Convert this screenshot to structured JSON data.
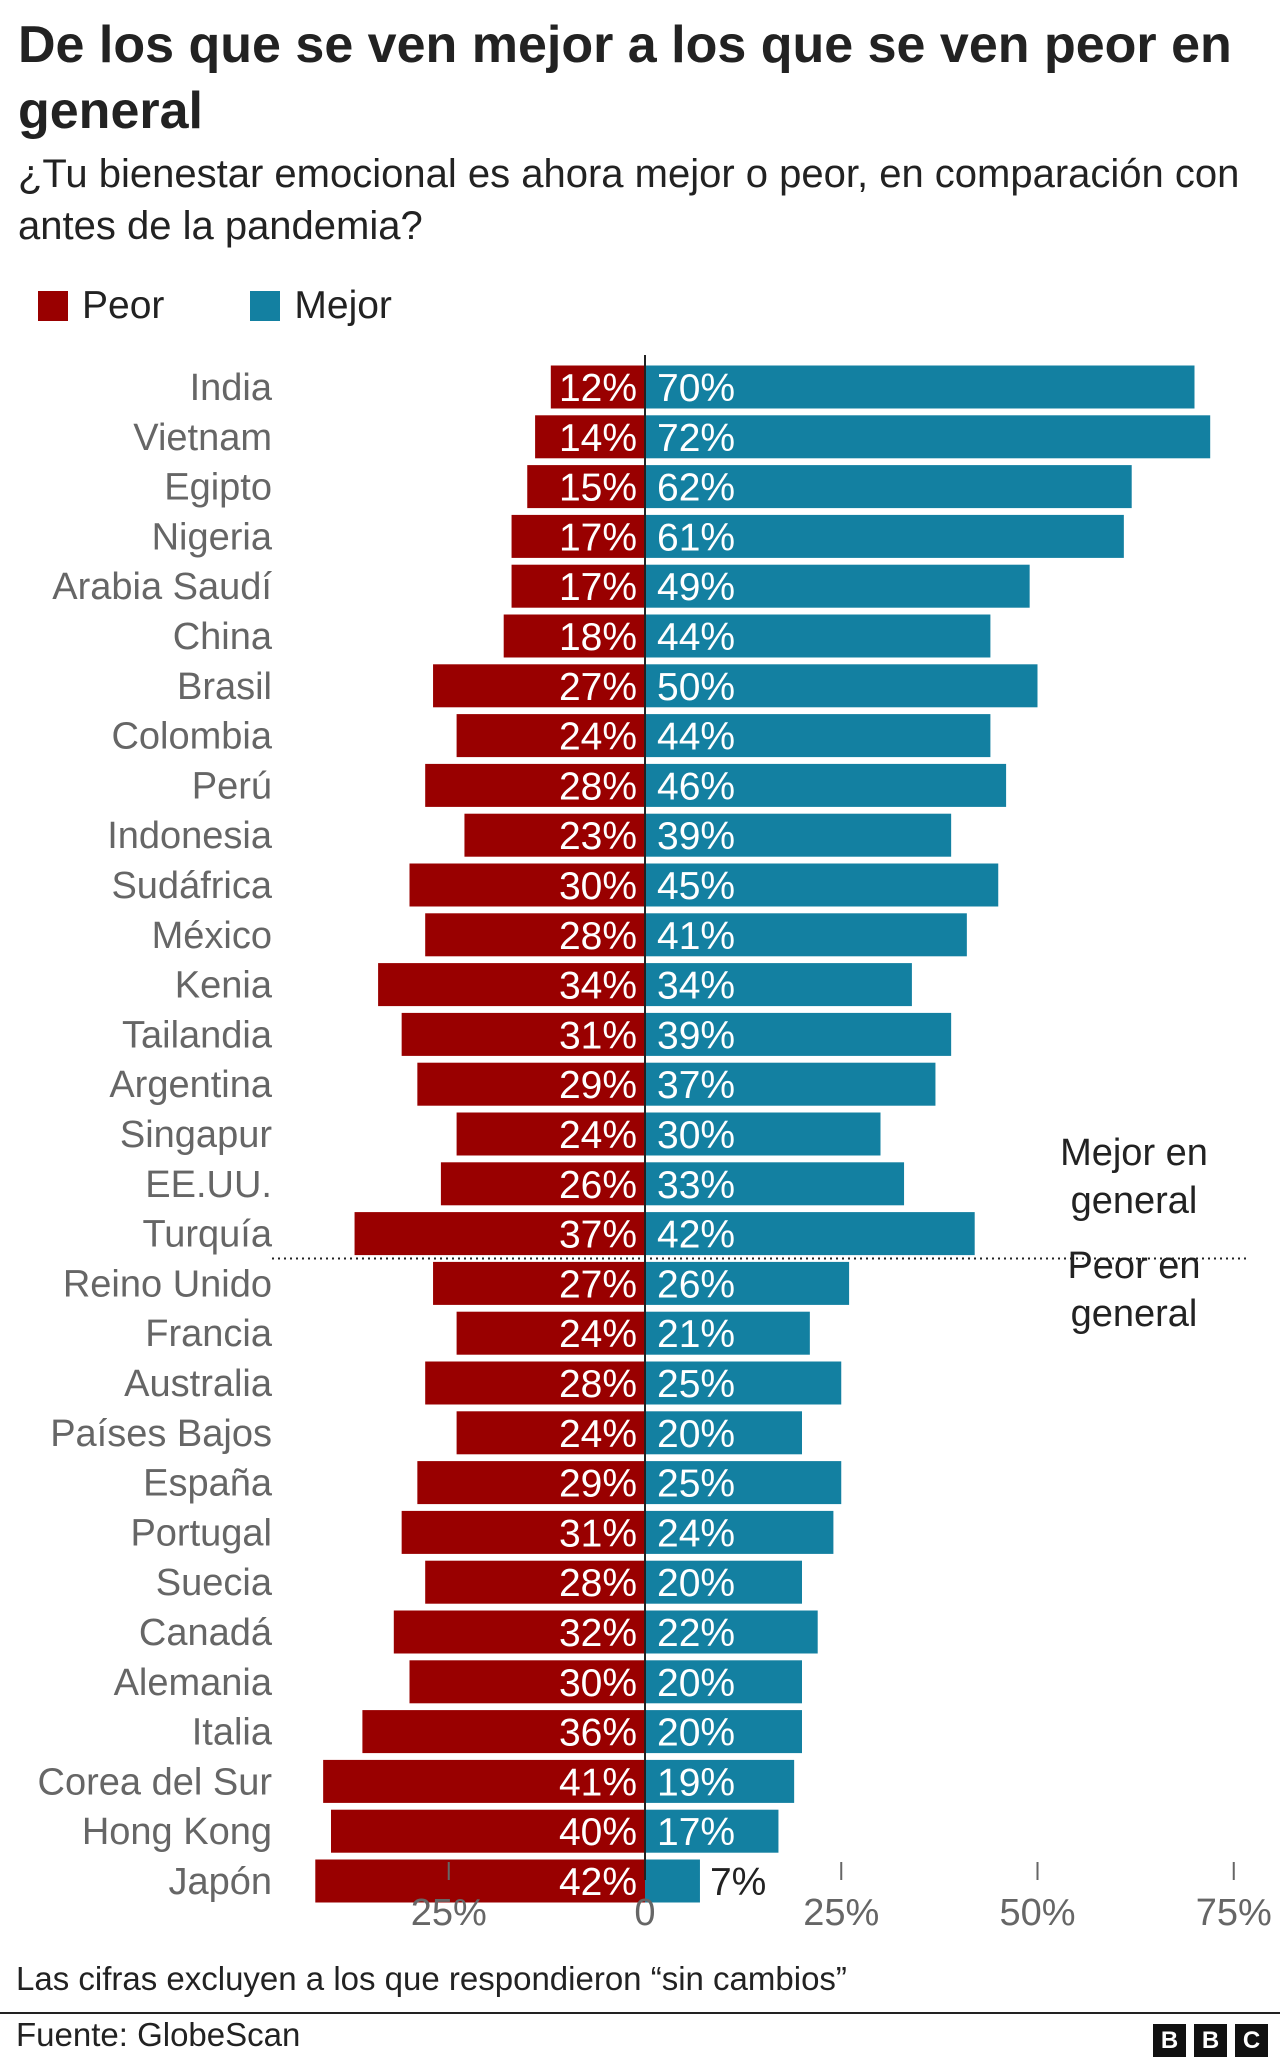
{
  "chart_data": {
    "type": "bar",
    "orientation": "horizontal-diverging",
    "title": "De los que se ven mejor a los que se ven peor en general",
    "subtitle": "¿Tu bienestar emocional es ahora mejor o peor, en comparación con antes de la pandemia?",
    "legend": [
      {
        "label": "Peor",
        "color": "#990000"
      },
      {
        "label": "Mejor",
        "color": "#1380a1"
      }
    ],
    "legend_placement": "top-left",
    "categories": [
      "India",
      "Vietnam",
      "Egipto",
      "Nigeria",
      "Arabia Saudí",
      "China",
      "Brasil",
      "Colombia",
      "Perú",
      "Indonesia",
      "Sudáfrica",
      "México",
      "Kenia",
      "Tailandia",
      "Argentina",
      "Singapur",
      "EE.UU.",
      "Turquía",
      "Reino Unido",
      "Francia",
      "Australia",
      "Países Bajos",
      "España",
      "Portugal",
      "Suecia",
      "Canadá",
      "Alemania",
      "Italia",
      "Corea del Sur",
      "Hong Kong",
      "Japón"
    ],
    "series": [
      {
        "name": "Peor",
        "values": [
          12,
          14,
          15,
          17,
          17,
          18,
          27,
          24,
          28,
          23,
          30,
          28,
          34,
          31,
          29,
          24,
          26,
          37,
          27,
          24,
          28,
          24,
          29,
          31,
          28,
          32,
          30,
          36,
          41,
          40,
          42
        ]
      },
      {
        "name": "Mejor",
        "values": [
          70,
          72,
          62,
          61,
          49,
          44,
          50,
          44,
          46,
          39,
          45,
          41,
          34,
          39,
          37,
          30,
          33,
          42,
          26,
          21,
          25,
          20,
          25,
          24,
          20,
          22,
          20,
          20,
          19,
          17,
          7
        ]
      }
    ],
    "xlim": [
      -50,
      75
    ],
    "xticks": [
      {
        "value": -25,
        "label": "25%"
      },
      {
        "value": 0,
        "label": "0"
      },
      {
        "value": 25,
        "label": "25%"
      },
      {
        "value": 50,
        "label": "50%"
      },
      {
        "value": 75,
        "label": "75%"
      }
    ],
    "divider_after_index": 17,
    "annotations": {
      "above": "Mejor en general",
      "below": "Peor en general"
    },
    "note": "Las cifras excluyen a los que respondieron “sin cambios”",
    "source": "Fuente: GlobeScan"
  },
  "brand": [
    "B",
    "B",
    "C"
  ]
}
